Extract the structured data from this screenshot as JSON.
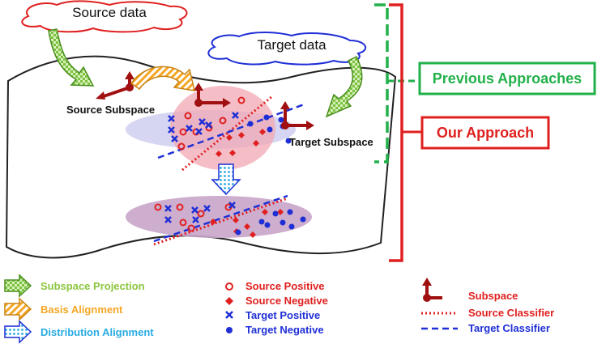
{
  "clouds": {
    "source": "Source data",
    "target": "Target data"
  },
  "subspace_labels": {
    "source": "Source Subspace",
    "target": "Target Subspace"
  },
  "approach_boxes": {
    "previous": "Previous Approaches",
    "ours": "Our Approach"
  },
  "legend": {
    "arrows": [
      {
        "label": "Subspace Projection",
        "icon": "green-checkered-arrow-icon",
        "color": "#8cc63f"
      },
      {
        "label": "Basis Alignment",
        "icon": "orange-striped-arrow-icon",
        "color": "#f5a623"
      },
      {
        "label": "Distribution Alignment",
        "icon": "blue-dotted-arrow-icon",
        "color": "#29abe2"
      }
    ],
    "markers": [
      {
        "label": "Source Positive",
        "icon": "red-circle-icon"
      },
      {
        "label": "Source Negative",
        "icon": "red-diamond-icon"
      },
      {
        "label": "Target Positive",
        "icon": "blue-cross-icon"
      },
      {
        "label": "Target Negative",
        "icon": "blue-dot-icon"
      }
    ],
    "lines": [
      {
        "label": "Subspace",
        "icon": "subspace-axes-icon"
      },
      {
        "label": "Source Classifier",
        "icon": "red-dotted-line-icon"
      },
      {
        "label": "Target Classifier",
        "icon": "blue-dashed-line-icon"
      }
    ]
  },
  "colors": {
    "red": "#e02020",
    "blue": "#1f2fd6",
    "green": "#22b04b",
    "dark_red": "#a01010"
  }
}
